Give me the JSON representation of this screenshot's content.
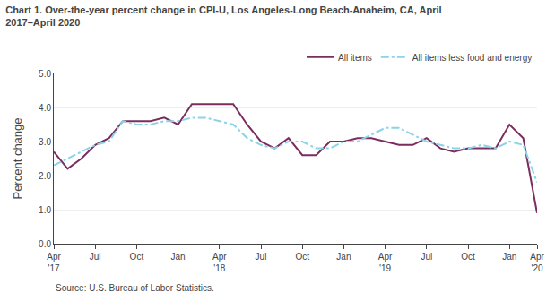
{
  "chart_data": {
    "type": "line",
    "title": "Chart 1. Over-the-year percent change in CPI-U, Los Angeles-Long Beach-Anaheim, CA, April\n2017–April 2020",
    "y_label": "Percent change",
    "annotations": [
      "Source: U.S. Bureau of Labor Statistics."
    ],
    "categories": [
      "Apr\n'17",
      null,
      null,
      "Jul",
      null,
      null,
      "Oct",
      null,
      null,
      "Jan",
      null,
      null,
      "Apr\n'18",
      null,
      null,
      "Jul",
      null,
      null,
      "Oct",
      null,
      null,
      "Jan",
      null,
      null,
      "Apr\n'19",
      null,
      null,
      "Jul",
      null,
      null,
      "Oct",
      null,
      null,
      "Jan",
      null,
      "Apr\n'20"
    ],
    "series": [
      {
        "name": "All items",
        "color": "#7B2D5E",
        "line_style": "solid",
        "values": [
          2.7,
          2.2,
          2.5,
          2.9,
          3.1,
          3.6,
          3.6,
          3.6,
          3.7,
          3.5,
          4.1,
          4.1,
          4.1,
          4.1,
          3.5,
          3.0,
          2.8,
          3.1,
          2.6,
          2.6,
          3.0,
          3.0,
          3.1,
          3.1,
          3.0,
          2.9,
          2.9,
          3.1,
          2.8,
          2.7,
          2.8,
          2.8,
          2.8,
          3.5,
          3.1,
          0.9
        ]
      },
      {
        "name": "All items less food and energy",
        "color": "#8DD3E8",
        "line_style": "dashdot",
        "values": [
          2.3,
          2.5,
          2.7,
          2.9,
          3.0,
          3.6,
          3.5,
          3.5,
          3.6,
          3.6,
          3.7,
          3.7,
          3.6,
          3.5,
          3.1,
          2.9,
          2.8,
          3.0,
          3.0,
          2.8,
          2.8,
          3.0,
          3.0,
          3.2,
          3.4,
          3.4,
          3.2,
          3.0,
          2.9,
          2.8,
          2.8,
          2.9,
          2.8,
          3.0,
          2.9,
          1.8
        ]
      }
    ],
    "ylim": [
      0.0,
      5.0
    ],
    "yticks": [
      {
        "value": 0,
        "label": "0.0"
      },
      {
        "value": 1,
        "label": "1.0"
      },
      {
        "value": 2,
        "label": "2.0"
      },
      {
        "value": 3,
        "label": "3.0"
      },
      {
        "value": 4,
        "label": "4.0"
      },
      {
        "value": 5,
        "label": "5.0"
      }
    ],
    "grid": true,
    "legend": "top right"
  }
}
